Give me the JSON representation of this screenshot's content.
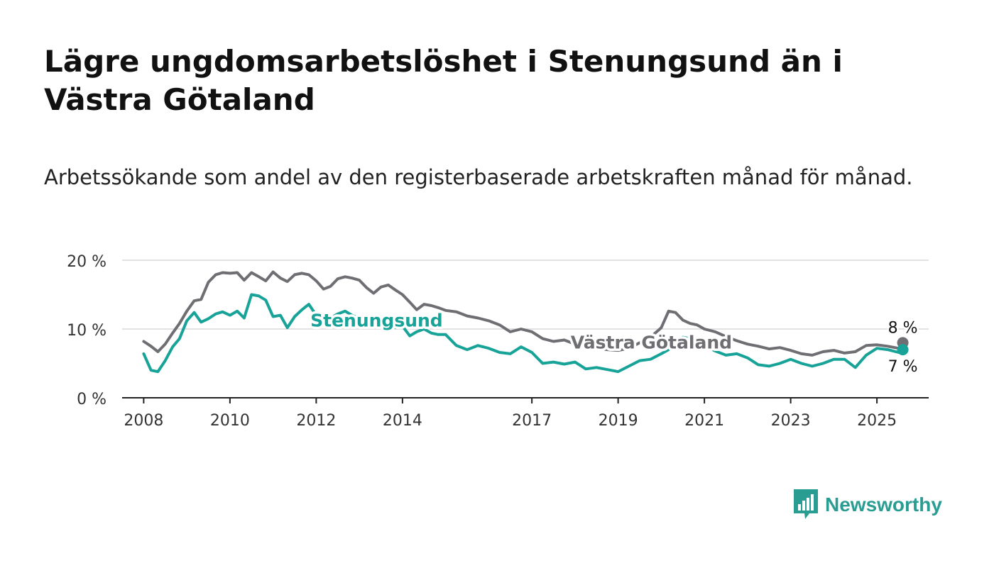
{
  "title": "Lägre ungdomsarbetslöshet i Stenungsund än i Västra Götaland",
  "subtitle": "Arbetssökande som andel av den registerbaserade arbetskraften månad för månad.",
  "brand": {
    "name": "Newsworthy",
    "color": "#2a9d92"
  },
  "chart_data": {
    "type": "line",
    "ylim": [
      0,
      20
    ],
    "xlim": [
      2007.5,
      2026.2
    ],
    "y_ticks": [
      0,
      10,
      20
    ],
    "y_tick_labels": [
      "0 %",
      "10 %",
      "20 %"
    ],
    "x_ticks": [
      2008,
      2010,
      2012,
      2014,
      2017,
      2019,
      2021,
      2023,
      2025
    ],
    "x_tick_labels": [
      "2008",
      "2010",
      "2012",
      "2014",
      "2017",
      "2019",
      "2021",
      "2023",
      "2025"
    ],
    "grid": true,
    "series": [
      {
        "name": "Västra Götaland",
        "color": "#6e6e73",
        "end_label": "8 %",
        "x": [
          2008.0,
          2008.17,
          2008.33,
          2008.5,
          2008.67,
          2008.83,
          2009.0,
          2009.17,
          2009.33,
          2009.5,
          2009.67,
          2009.83,
          2010.0,
          2010.17,
          2010.33,
          2010.5,
          2010.67,
          2010.83,
          2011.0,
          2011.17,
          2011.33,
          2011.5,
          2011.67,
          2011.83,
          2012.0,
          2012.17,
          2012.33,
          2012.5,
          2012.67,
          2012.83,
          2013.0,
          2013.17,
          2013.33,
          2013.5,
          2013.67,
          2013.83,
          2014.0,
          2014.17,
          2014.33,
          2014.5,
          2014.67,
          2014.83,
          2015.0,
          2015.25,
          2015.5,
          2015.75,
          2016.0,
          2016.25,
          2016.5,
          2016.75,
          2017.0,
          2017.25,
          2017.5,
          2017.75,
          2018.0,
          2018.25,
          2018.5,
          2018.75,
          2019.0,
          2019.25,
          2019.5,
          2019.75,
          2020.0,
          2020.17,
          2020.33,
          2020.5,
          2020.67,
          2020.83,
          2021.0,
          2021.25,
          2021.5,
          2021.75,
          2022.0,
          2022.25,
          2022.5,
          2022.75,
          2023.0,
          2023.25,
          2023.5,
          2023.75,
          2024.0,
          2024.25,
          2024.5,
          2024.75,
          2025.0,
          2025.25,
          2025.5,
          2025.6
        ],
        "values": [
          8.2,
          7.5,
          6.7,
          7.8,
          9.4,
          10.8,
          12.6,
          14.1,
          14.3,
          16.8,
          17.9,
          18.2,
          18.1,
          18.2,
          17.1,
          18.2,
          17.6,
          17.0,
          18.3,
          17.4,
          16.9,
          17.9,
          18.1,
          17.9,
          17.0,
          15.8,
          16.2,
          17.3,
          17.6,
          17.4,
          17.1,
          16.0,
          15.2,
          16.1,
          16.4,
          15.7,
          15.0,
          13.9,
          12.8,
          13.6,
          13.4,
          13.1,
          12.7,
          12.5,
          11.9,
          11.6,
          11.2,
          10.6,
          9.6,
          10.0,
          9.6,
          8.6,
          8.2,
          8.4,
          7.8,
          7.4,
          7.2,
          7.0,
          6.9,
          7.2,
          8.0,
          8.8,
          10.2,
          12.6,
          12.4,
          11.3,
          10.8,
          10.6,
          10.0,
          9.6,
          8.9,
          8.3,
          7.8,
          7.5,
          7.1,
          7.3,
          6.9,
          6.4,
          6.2,
          6.7,
          6.9,
          6.5,
          6.7,
          7.6,
          7.7,
          7.5,
          7.2,
          8.0
        ]
      },
      {
        "name": "Stenungsund",
        "color": "#17a398",
        "end_label": "7 %",
        "x": [
          2008.0,
          2008.17,
          2008.33,
          2008.5,
          2008.67,
          2008.83,
          2009.0,
          2009.17,
          2009.33,
          2009.5,
          2009.67,
          2009.83,
          2010.0,
          2010.17,
          2010.33,
          2010.5,
          2010.67,
          2010.83,
          2011.0,
          2011.17,
          2011.33,
          2011.5,
          2011.67,
          2011.83,
          2012.0,
          2012.17,
          2012.33,
          2012.5,
          2012.67,
          2012.83,
          2013.0,
          2013.17,
          2013.33,
          2013.5,
          2013.67,
          2013.83,
          2014.0,
          2014.17,
          2014.33,
          2014.5,
          2014.67,
          2014.83,
          2015.0,
          2015.25,
          2015.5,
          2015.75,
          2016.0,
          2016.25,
          2016.5,
          2016.75,
          2017.0,
          2017.25,
          2017.5,
          2017.75,
          2018.0,
          2018.25,
          2018.5,
          2018.75,
          2019.0,
          2019.25,
          2019.5,
          2019.75,
          2020.0,
          2020.17,
          2020.33,
          2020.5,
          2020.67,
          2020.83,
          2021.0,
          2021.25,
          2021.5,
          2021.75,
          2022.0,
          2022.25,
          2022.5,
          2022.75,
          2023.0,
          2023.25,
          2023.5,
          2023.75,
          2024.0,
          2024.25,
          2024.5,
          2024.75,
          2025.0,
          2025.25,
          2025.5,
          2025.6
        ],
        "values": [
          6.4,
          4.0,
          3.8,
          5.4,
          7.4,
          8.6,
          11.2,
          12.4,
          11.0,
          11.5,
          12.2,
          12.5,
          12.0,
          12.6,
          11.6,
          15.0,
          14.8,
          14.2,
          11.8,
          12.0,
          10.2,
          11.8,
          12.8,
          13.6,
          12.0,
          11.2,
          11.6,
          12.2,
          12.6,
          12.0,
          11.6,
          11.0,
          10.4,
          10.8,
          11.4,
          10.2,
          10.4,
          9.0,
          9.6,
          10.0,
          9.4,
          9.2,
          9.2,
          7.6,
          7.0,
          7.6,
          7.2,
          6.6,
          6.4,
          7.4,
          6.6,
          5.0,
          5.2,
          4.9,
          5.2,
          4.2,
          4.4,
          4.1,
          3.8,
          4.6,
          5.4,
          5.6,
          6.4,
          7.0,
          8.0,
          8.8,
          8.6,
          8.0,
          7.6,
          6.8,
          6.2,
          6.4,
          5.8,
          4.8,
          4.6,
          5.0,
          5.6,
          5.0,
          4.6,
          5.0,
          5.6,
          5.6,
          4.4,
          6.2,
          7.2,
          7.0,
          6.6,
          7.0
        ]
      }
    ]
  }
}
